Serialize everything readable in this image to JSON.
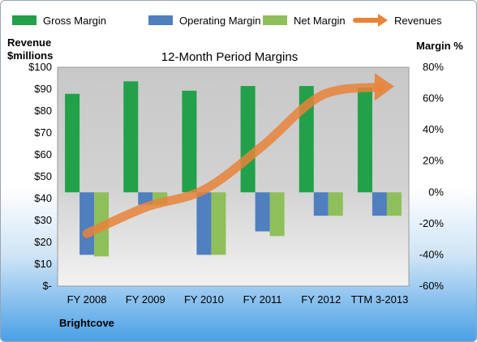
{
  "chart_data": {
    "type": "bar",
    "title": "12-Month Period Margins",
    "company": "Brightcove",
    "ylabel_left": [
      "Revenue",
      "$millions"
    ],
    "ylabel_right": "Margin %",
    "categories": [
      "FY 2008",
      "FY 2009",
      "FY 2010",
      "FY 2011",
      "FY 2012",
      "TTM 3-2013"
    ],
    "series": [
      {
        "name": "Gross Margin",
        "axis": "right",
        "color": "#22a04a",
        "values": [
          63,
          71,
          65,
          68,
          68,
          67
        ]
      },
      {
        "name": "Operating Margin",
        "axis": "right",
        "color": "#4f7fbf",
        "values": [
          -40,
          -8,
          -40,
          -25,
          -15,
          -15
        ]
      },
      {
        "name": "Net Margin",
        "axis": "right",
        "color": "#8fbf5a",
        "values": [
          -41,
          -8,
          -40,
          -28,
          -15,
          -15
        ]
      },
      {
        "name": "Revenues",
        "axis": "left",
        "type": "line",
        "color": "#e8833a",
        "values": [
          24,
          36,
          44,
          64,
          87,
          91
        ]
      }
    ],
    "left_axis": {
      "min": 0,
      "max": 100,
      "ticks": [
        "$-",
        "$10",
        "$20",
        "$30",
        "$40",
        "$50",
        "$60",
        "$70",
        "$80",
        "$90",
        "$100"
      ]
    },
    "right_axis": {
      "min": -60,
      "max": 80,
      "ticks": [
        "-60%",
        "-40%",
        "-20%",
        "0%",
        "20%",
        "40%",
        "60%",
        "80%"
      ]
    },
    "grid": false,
    "legend": "top"
  }
}
